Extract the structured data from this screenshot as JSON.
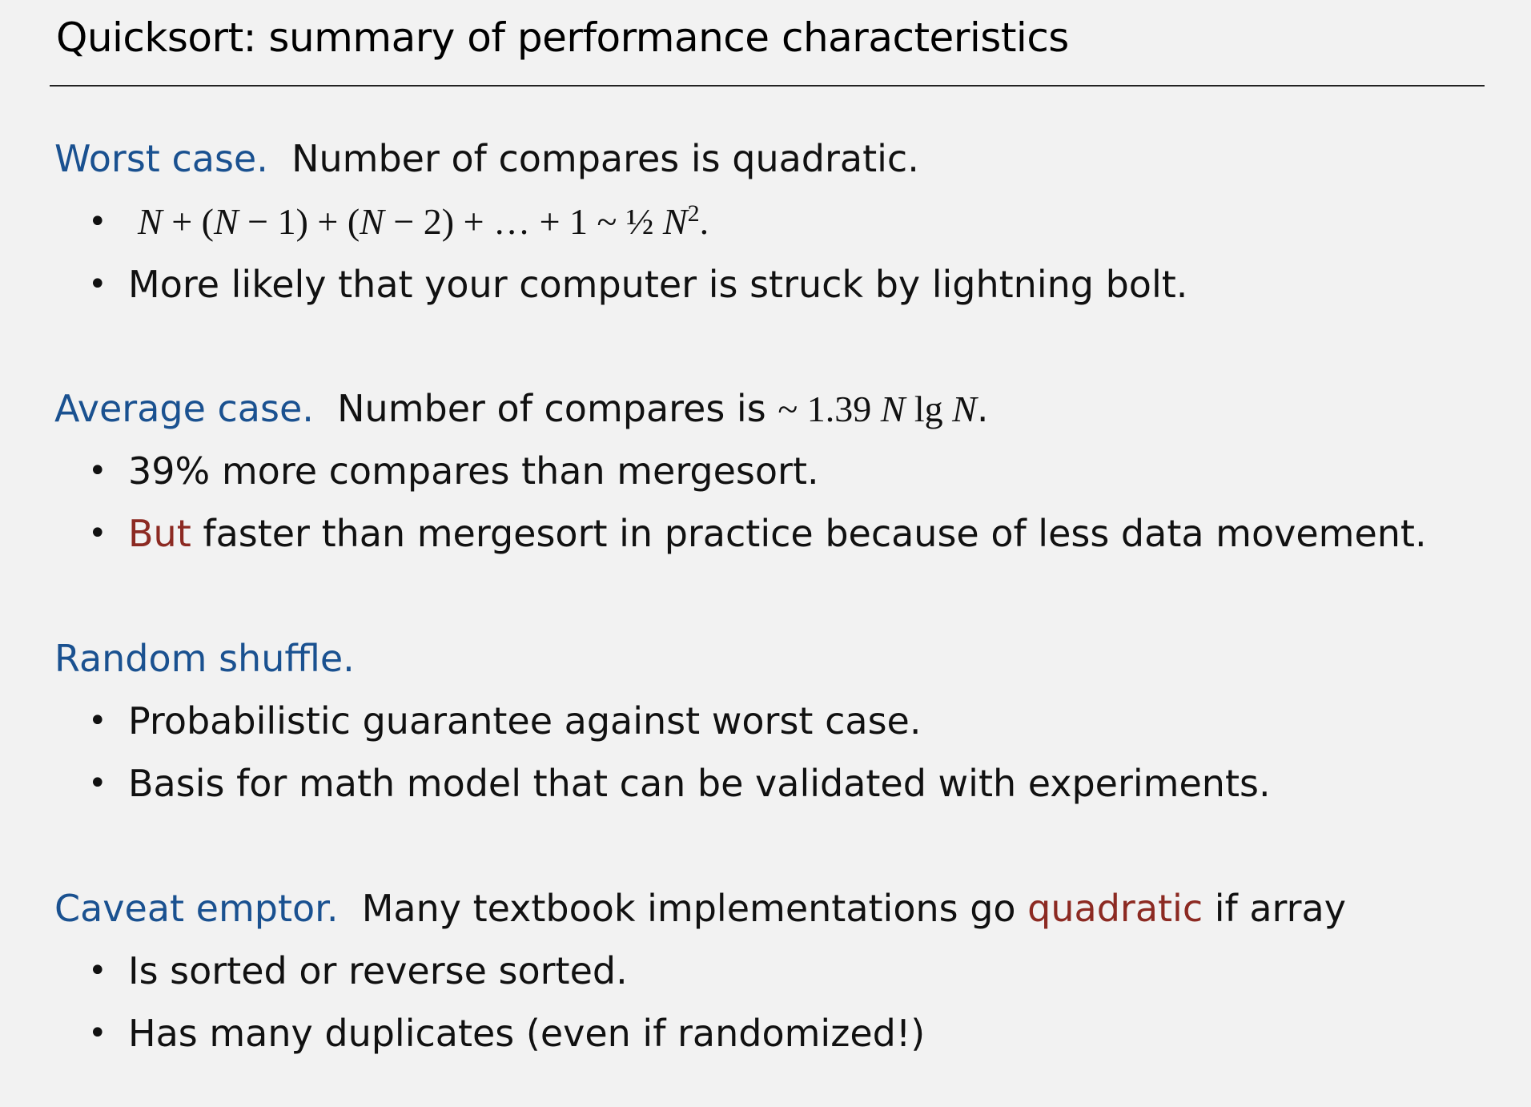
{
  "title": "Quicksort:  summary of performance characteristics",
  "colors": {
    "heading": "#1a5190",
    "emphasis": "#8c2a22",
    "text": "#111111",
    "background": "#f2f2f2"
  },
  "worst": {
    "heading": "Worst case.",
    "text": "Number of compares is quadratic.",
    "formula": {
      "N1": "N",
      "plus1": " + (",
      "N2": "N",
      "minus1": " − 1) + (",
      "N3": "N",
      "minus2": " − 2)  + … + 1  ~  ½",
      "N4": "N",
      "exp": "2",
      "end": "."
    },
    "bullet2": "More likely that your computer is struck by lightning bolt."
  },
  "average": {
    "heading": "Average case.",
    "text": "Number of compares is ",
    "tilde": "~ 1.39 ",
    "N1": "N",
    "lg": " lg ",
    "N2": "N",
    "period": ".",
    "bullet1": "39% more compares than mergesort.",
    "bullet2_emph": "But",
    "bullet2_rest": " faster than mergesort in practice because of less data movement."
  },
  "shuffle": {
    "heading": "Random shuffle.",
    "bullet1": "Probabilistic guarantee against worst case.",
    "bullet2": "Basis for math model that can be validated with experiments."
  },
  "caveat": {
    "heading": "Caveat emptor.",
    "text_before": "Many textbook implementations go ",
    "emph": "quadratic",
    "text_after": " if array",
    "bullet1": "Is sorted or reverse sorted.",
    "bullet2": "Has many duplicates (even if randomized!)"
  },
  "bullet_char": "•"
}
